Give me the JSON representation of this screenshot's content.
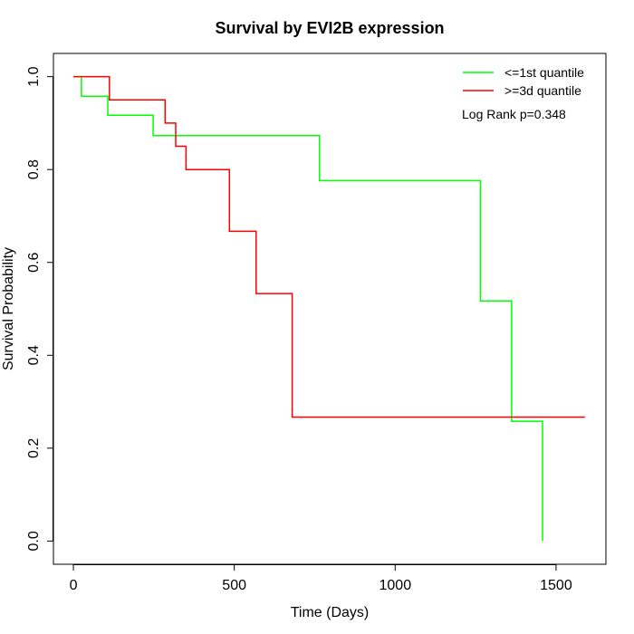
{
  "chart_data": {
    "type": "line",
    "title": "Survival by EVI2B expression",
    "xlabel": "Time (Days)",
    "ylabel": "Survival Probability",
    "xlim": [
      -62,
      1655
    ],
    "ylim": [
      -0.05,
      1.05
    ],
    "x_ticks": [
      0,
      500,
      1000,
      1500
    ],
    "y_ticks": [
      0.0,
      0.2,
      0.4,
      0.6,
      0.8,
      1.0
    ],
    "x_tick_labels": [
      "0",
      "500",
      "1000",
      "1500"
    ],
    "y_tick_labels": [
      "0.0",
      "0.2",
      "0.4",
      "0.6",
      "0.8",
      "1.0"
    ],
    "grid": false,
    "legend_position": "top-right",
    "annotation": "Log Rank p=0.348",
    "series": [
      {
        "name": "<=1st quantile",
        "color": "#00ff00",
        "step": true,
        "x": [
          0,
          25,
          107,
          248,
          765,
          1265,
          1362,
          1458,
          1458
        ],
        "y": [
          1.0,
          0.958,
          0.917,
          0.873,
          0.776,
          0.517,
          0.258,
          0.258,
          0.0
        ]
      },
      {
        "name": ">=3d quantile",
        "color": "#ff0000",
        "step": true,
        "x": [
          0,
          112,
          285,
          318,
          350,
          485,
          568,
          680,
          1590
        ],
        "y": [
          1.0,
          0.95,
          0.9,
          0.85,
          0.8,
          0.667,
          0.533,
          0.267,
          0.267
        ]
      }
    ]
  }
}
